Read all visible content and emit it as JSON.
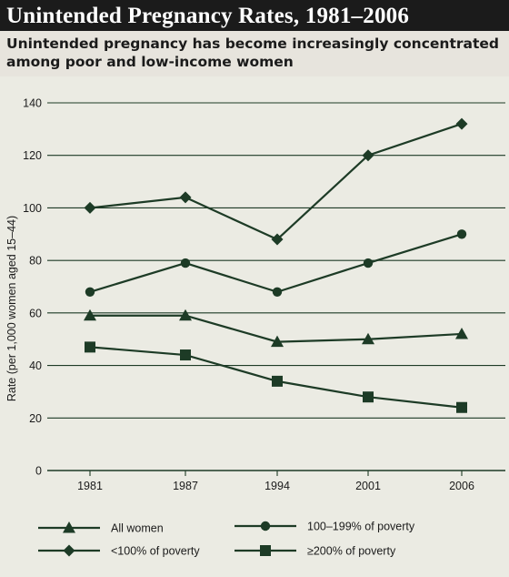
{
  "header": {
    "title": "Unintended Pregnancy Rates, 1981–2006",
    "subtitle": "Unintended pregnancy has become increasingly concentrated among poor and low-income women"
  },
  "colors": {
    "series": "#1d3b26",
    "grid": "#1d3b26",
    "title_bg": "#1b1b1b",
    "subtitle_bg": "#e7e4dd",
    "plot_bg": "#ebebe3"
  },
  "chart_data": {
    "type": "line",
    "title": "",
    "ylabel": "Rate (per 1,000 women aged 15–44)",
    "xlabel": "",
    "categories": [
      "1981",
      "1987",
      "1994",
      "2001",
      "2006"
    ],
    "ylim": [
      0,
      140
    ],
    "yticks": [
      0,
      20,
      40,
      60,
      80,
      100,
      120,
      140
    ],
    "grid": "horizontal",
    "legend_position": "bottom",
    "series": [
      {
        "name": "All women",
        "marker": "triangle",
        "values": [
          59,
          59,
          49,
          50,
          52
        ]
      },
      {
        "name": "100–199% of poverty",
        "marker": "circle",
        "values": [
          68,
          79,
          68,
          79,
          90
        ]
      },
      {
        "name": "<100% of poverty",
        "marker": "diamond",
        "values": [
          100,
          104,
          88,
          120,
          132
        ]
      },
      {
        "name": "≥200% of poverty",
        "marker": "square",
        "values": [
          47,
          44,
          34,
          28,
          24
        ]
      }
    ]
  }
}
